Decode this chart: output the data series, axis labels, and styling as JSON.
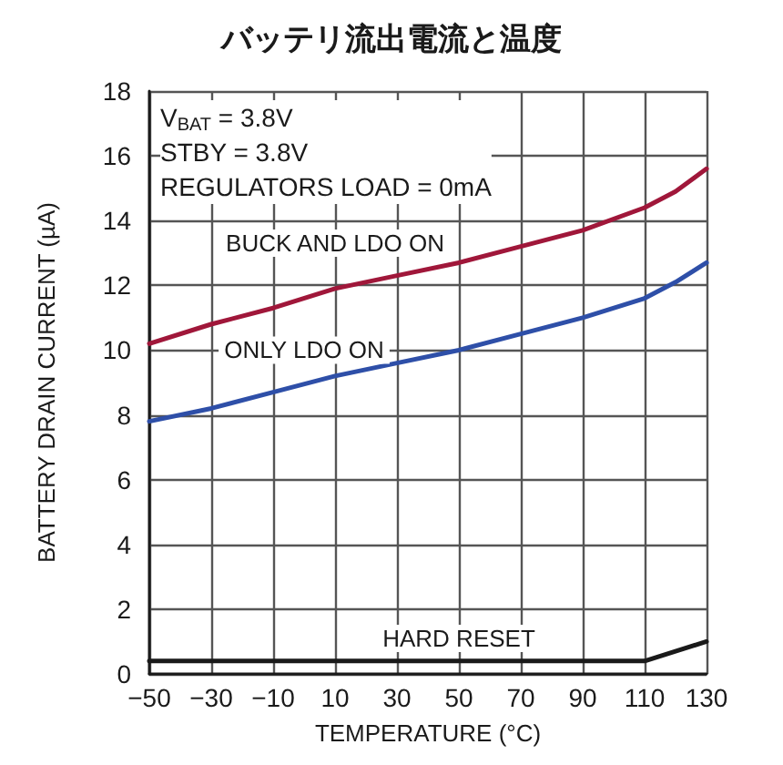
{
  "chart_data": {
    "type": "line",
    "title": "バッテリ流出電流と温度",
    "xlabel": "TEMPERATURE (°C)",
    "ylabel": "BATTERY DRAIN CURRENT (µA)",
    "annotations": [
      "V$_{BAT}$ = 3.8V",
      "STBY = 3.8V",
      "REGULATORS LOAD = 0mA"
    ],
    "series": [
      {
        "name": "BUCK AND LDO ON",
        "color": "#a0173a",
        "x": [
          -50,
          -30,
          -10,
          10,
          30,
          50,
          70,
          90,
          110,
          120,
          130
        ],
        "values": [
          10.2,
          10.8,
          11.3,
          11.9,
          12.3,
          12.7,
          13.2,
          13.7,
          14.4,
          14.9,
          15.6
        ]
      },
      {
        "name": "ONLY LDO ON",
        "color": "#2e4fa8",
        "x": [
          -50,
          -30,
          -10,
          10,
          30,
          50,
          70,
          90,
          110,
          120,
          130
        ],
        "values": [
          7.8,
          8.2,
          8.7,
          9.2,
          9.6,
          10.0,
          10.5,
          11.0,
          11.6,
          12.1,
          12.7
        ]
      },
      {
        "name": "HARD RESET",
        "color": "#1a1a1a",
        "x": [
          -50,
          110,
          130
        ],
        "values": [
          0.4,
          0.4,
          1.0
        ]
      }
    ],
    "xlim": [
      -50,
      130
    ],
    "xticks": [
      -50,
      -30,
      -10,
      10,
      30,
      50,
      70,
      90,
      110,
      130
    ],
    "ylim": [
      0,
      18
    ],
    "yticks": [
      0,
      2,
      4,
      6,
      8,
      10,
      12,
      14,
      16,
      18
    ],
    "grid": true,
    "legend": false,
    "marker": "none",
    "line_style": "solid"
  }
}
